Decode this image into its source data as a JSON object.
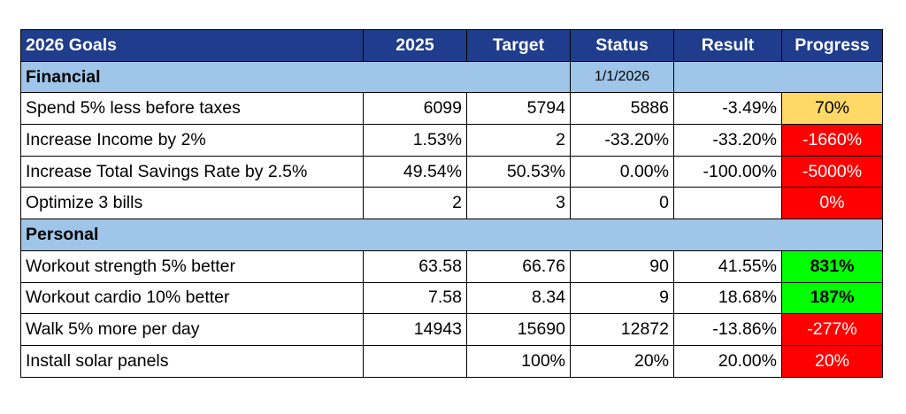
{
  "header": [
    "2026 Goals",
    "2025",
    "Target",
    "Status",
    "Result",
    "Progress"
  ],
  "header_fill": "#1f3d8c",
  "section_fill": "#9fc5e8",
  "sections": [
    {
      "title": "Financial",
      "status_note": "1/1/2026",
      "rows": [
        {
          "cells": [
            "Spend 5% less before taxes",
            "6099",
            "5794",
            "5886",
            "-3.49%",
            "70%"
          ],
          "progress_fill": "#ffd966"
        },
        {
          "cells": [
            "Increase Income by 2%",
            "1.53%",
            "2",
            "-33.20%",
            "-33.20%",
            "-1660%"
          ],
          "progress_fill": "#ff0000"
        },
        {
          "cells": [
            "Increase Total Savings Rate by 2.5%",
            "49.54%",
            "50.53%",
            "0.00%",
            "-100.00%",
            "-5000%"
          ],
          "progress_fill": "#ff0000"
        },
        {
          "cells": [
            "Optimize 3 bills",
            "2",
            "3",
            "0",
            null,
            "0%"
          ],
          "progress_fill": "#ff0000"
        }
      ]
    },
    {
      "title": "Personal",
      "rows": [
        {
          "cells": [
            "Workout strength 5% better",
            "63.58",
            "66.76",
            "90",
            "41.55%",
            "831%"
          ],
          "progress_fill": "#00ff00"
        },
        {
          "cells": [
            "Workout cardio 10% better",
            "7.58",
            "8.34",
            "9",
            "18.68%",
            "187%"
          ],
          "progress_fill": "#00ff00"
        },
        {
          "cells": [
            "Walk 5% more per day",
            "14943",
            "15690",
            "12872",
            "-13.86%",
            "-277%"
          ],
          "progress_fill": "#ff0000"
        },
        {
          "cells": [
            "Install solar panels",
            null,
            "100%",
            "20%",
            "20.00%",
            "20%"
          ],
          "progress_fill": "#ff0000"
        }
      ]
    }
  ]
}
